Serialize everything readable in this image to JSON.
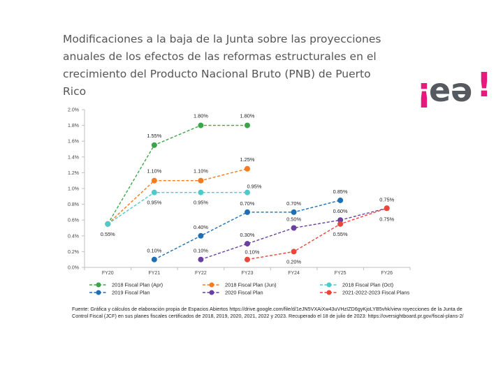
{
  "title": "Modificaciones a la baja de la Junta sobre las proyecciones anuales de los efectos de las reformas estructurales en el crecimiento del Producto Nacional Bruto (PNB) de Puerto Rico",
  "logo": {
    "text": "¡eə!",
    "colors": {
      "exclaim": "#e8197d",
      "letters": "#555a60"
    }
  },
  "source": "Fuente:  Gráfica y cálculos de elaboración propia de Espacios Abiertos  https://drive.google.com/file/d/1eJN5VXAiXw43uVHzIZD6gyKjoLYB5vhk/view royecciones de la Junta de Control Fiscal (JCF) en sus planes fiscales certificados de 2018, 2019, 2020, 2021, 2022 y 2023. Recuperado el 18 de julio de 2023: https://oversightboard.pr.gov/fiscal-plans-2/",
  "chart_data": {
    "type": "line",
    "categories": [
      "FY20",
      "FY21",
      "FY22",
      "FY23",
      "FY24",
      "FY25",
      "FY26"
    ],
    "ylim": [
      0,
      2.0
    ],
    "yticks": [
      "0.0%",
      "0.2%",
      "0.4%",
      "0.6%",
      "0.8%",
      "1.0%",
      "1.2%",
      "1.4%",
      "1.6%",
      "1.8%",
      "2.0%"
    ],
    "ytick_values": [
      0,
      0.2,
      0.4,
      0.6,
      0.8,
      1.0,
      1.2,
      1.4,
      1.6,
      1.8,
      2.0
    ],
    "grid": false,
    "legend_position": "bottom",
    "series": [
      {
        "name": "2018 Fiscal Plan (Apr)",
        "color": "#3aa54a",
        "values": [
          0.55,
          1.55,
          1.8,
          1.8,
          null,
          null,
          null
        ],
        "labels": [
          "",
          "1.55%",
          "1.80%",
          "1.80%",
          "",
          "",
          ""
        ]
      },
      {
        "name": "2018 Fiscal Plan (Jun)",
        "color": "#f47b20",
        "values": [
          0.55,
          1.1,
          1.1,
          1.25,
          null,
          null,
          null
        ],
        "labels": [
          "",
          "1.10%",
          "1.10%",
          "1.25%",
          "",
          "",
          ""
        ]
      },
      {
        "name": "2018 Fiscal Plan (Oct)",
        "color": "#4fc9c9",
        "values": [
          0.55,
          0.95,
          0.95,
          0.95,
          null,
          null,
          null
        ],
        "labels": [
          "0.55%",
          "0.95%",
          "0.95%",
          "0.95%",
          "",
          "",
          ""
        ]
      },
      {
        "name": "2019 Fiscal Plan",
        "color": "#1f6fb5",
        "values": [
          null,
          0.1,
          0.4,
          0.7,
          0.7,
          0.85,
          null
        ],
        "labels": [
          "",
          "0.10%",
          "0.40%",
          "0.70%",
          "0.70%",
          "0.85%",
          ""
        ]
      },
      {
        "name": "2020 Fiscal Plan",
        "color": "#6a3fa0",
        "values": [
          null,
          null,
          0.1,
          0.3,
          0.5,
          0.6,
          0.75
        ],
        "labels": [
          "",
          "",
          "0.10%",
          "0.30%",
          "0.50%",
          "0.60%",
          "0.75%"
        ]
      },
      {
        "name": "2021-2022-2023  Fiscal  Plans",
        "color": "#e8473b",
        "values": [
          null,
          null,
          null,
          0.1,
          0.2,
          0.55,
          0.75
        ],
        "labels": [
          "",
          "",
          "",
          "0.10%",
          "0.20%",
          "0.55%",
          "0.75%"
        ]
      }
    ]
  }
}
